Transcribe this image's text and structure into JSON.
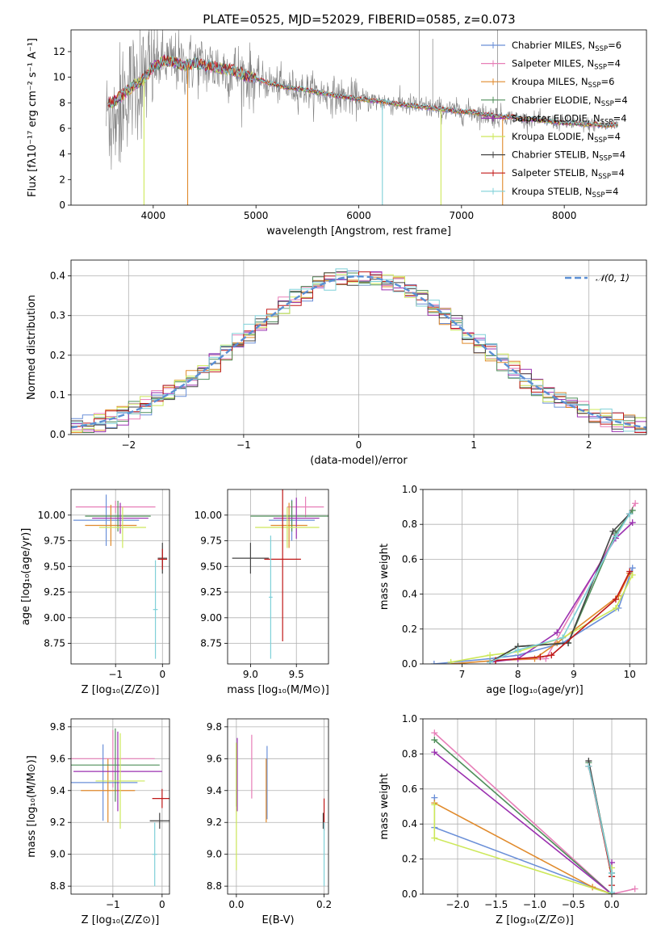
{
  "colors": {
    "Chabrier MILES": "#6a8fd8",
    "Salpeter MILES": "#e77fb8",
    "Kroupa MILES": "#e08a2b",
    "Chabrier ELODIE": "#4f8f5a",
    "Salpeter ELODIE": "#9b30b0",
    "Kroupa ELODIE": "#cde85a",
    "Chabrier STELIB": "#444444",
    "Salpeter STELIB": "#c01818",
    "Kroupa STELIB": "#7fd0d8",
    "gaussian": "#5b8fd4",
    "spectrum": "#808080"
  },
  "chart_data": [
    {
      "id": "spectrum",
      "type": "line",
      "title": "PLATE=0525, MJD=52029, FIBERID=0585, z=0.073",
      "xlabel": "wavelength [Angstrom, rest frame]",
      "ylabel": "Flux [fλ10⁻¹⁷ erg cm⁻² s⁻¹ A⁻¹]",
      "xlim": [
        3200,
        8800
      ],
      "ylim": [
        0,
        13.7
      ],
      "xticks": [
        4000,
        5000,
        6000,
        7000,
        8000
      ],
      "yticks": [
        0,
        2,
        4,
        6,
        8,
        10,
        12
      ],
      "grid": false,
      "legend_position": "top-right",
      "legend": [
        {
          "model": "Chabrier MILES",
          "label": "Chabrier MILES, N",
          "sub": "SSP",
          "n": "=6"
        },
        {
          "model": "Salpeter MILES",
          "label": "Salpeter MILES, N",
          "sub": "SSP",
          "n": "=4"
        },
        {
          "model": "Kroupa MILES",
          "label": "Kroupa MILES, N",
          "sub": "SSP",
          "n": "=6"
        },
        {
          "model": "Chabrier ELODIE",
          "label": "Chabrier ELODIE, N",
          "sub": "SSP",
          "n": "=4"
        },
        {
          "model": "Salpeter ELODIE",
          "label": "Salpeter ELODIE, N",
          "sub": "SSP",
          "n": "=4"
        },
        {
          "model": "Kroupa ELODIE",
          "label": "Kroupa ELODIE, N",
          "sub": "SSP",
          "n": "=4"
        },
        {
          "model": "Chabrier STELIB",
          "label": "Chabrier STELIB, N",
          "sub": "SSP",
          "n": "=4"
        },
        {
          "model": "Salpeter STELIB",
          "label": "Salpeter STELIB, N",
          "sub": "SSP",
          "n": "=4"
        },
        {
          "model": "Kroupa STELIB",
          "label": "Kroupa STELIB, N",
          "sub": "SSP",
          "n": "=4"
        }
      ],
      "model_continuum": [
        [
          3500,
          8.2
        ],
        [
          3600,
          8.0
        ],
        [
          3700,
          8.6
        ],
        [
          3800,
          9.3
        ],
        [
          3900,
          9.8
        ],
        [
          4000,
          10.8
        ],
        [
          4100,
          11.3
        ],
        [
          4200,
          11.2
        ],
        [
          4300,
          10.9
        ],
        [
          4400,
          11.1
        ],
        [
          4500,
          10.9
        ],
        [
          4600,
          10.8
        ],
        [
          4700,
          10.6
        ],
        [
          4800,
          10.5
        ],
        [
          4900,
          10.1
        ],
        [
          5000,
          9.9
        ],
        [
          5100,
          9.6
        ],
        [
          5200,
          9.4
        ],
        [
          5300,
          9.2
        ],
        [
          5400,
          9.1
        ],
        [
          5500,
          9.0
        ],
        [
          5600,
          8.8
        ],
        [
          5700,
          8.7
        ],
        [
          5800,
          8.5
        ],
        [
          5900,
          8.4
        ],
        [
          6000,
          8.3
        ],
        [
          6100,
          8.2
        ],
        [
          6200,
          8.1
        ],
        [
          6300,
          8.0
        ],
        [
          6400,
          7.9
        ],
        [
          6500,
          7.8
        ],
        [
          6600,
          7.7
        ],
        [
          6700,
          7.6
        ],
        [
          6800,
          7.5
        ],
        [
          6900,
          7.4
        ],
        [
          7000,
          7.3
        ],
        [
          7100,
          7.3
        ],
        [
          7200,
          7.1
        ],
        [
          7300,
          7.0
        ],
        [
          7400,
          6.9
        ],
        [
          7500,
          6.9
        ],
        [
          7600,
          6.7
        ],
        [
          7700,
          6.7
        ],
        [
          7800,
          6.6
        ],
        [
          7900,
          6.5
        ],
        [
          8000,
          6.4
        ],
        [
          8100,
          6.4
        ],
        [
          8200,
          6.3
        ],
        [
          8300,
          6.3
        ],
        [
          8400,
          6.2
        ],
        [
          8500,
          6.3
        ]
      ],
      "model_dips": [
        {
          "model": "Kroupa ELODIE",
          "x": 3910,
          "y": 0
        },
        {
          "model": "Kroupa MILES",
          "x": 4335,
          "y": 0
        },
        {
          "model": "Kroupa STELIB",
          "x": 6230,
          "y": 0
        },
        {
          "model": "Kroupa ELODIE",
          "x": 6800,
          "y": 0
        },
        {
          "model": "Kroupa MILES",
          "x": 7400,
          "y": 0
        }
      ]
    },
    {
      "id": "residuals",
      "type": "step",
      "xlabel": "(data-model)/error",
      "ylabel": "Normed distribution",
      "xlim": [
        -2.5,
        2.5
      ],
      "ylim": [
        0,
        0.44
      ],
      "xticks": [
        -2,
        -1,
        0,
        1,
        2
      ],
      "yticks": [
        0.0,
        0.1,
        0.2,
        0.3,
        0.4
      ],
      "grid": true,
      "legend_position": "top-right",
      "legend": [
        {
          "label": "𝒩(0, 1)",
          "style": "dashed"
        }
      ],
      "bin_width": 0.1
    },
    {
      "id": "age_vs_Z",
      "type": "errorbar",
      "xlabel": "Z [log₁₀(Z/Z⊙)]",
      "ylabel": "age  [log₁₀(age/yr)]",
      "xlim": [
        -1.95,
        0.15
      ],
      "ylim": [
        8.55,
        10.25
      ],
      "xticks": [
        -1,
        0
      ],
      "yticks": [
        8.75,
        9.0,
        9.25,
        9.5,
        9.75,
        10.0
      ],
      "grid": true,
      "points": [
        {
          "model": "Salpeter MILES",
          "x": -1.0,
          "xerr": 0.85,
          "y": 10.08,
          "yerr": 0.06
        },
        {
          "model": "Chabrier MILES",
          "x": -1.2,
          "xerr": 0.7,
          "y": 9.95,
          "yerr": 0.25
        },
        {
          "model": "Kroupa MILES",
          "x": -1.1,
          "xerr": 0.55,
          "y": 9.9,
          "yerr": 0.2
        },
        {
          "model": "Chabrier ELODIE",
          "x": -0.95,
          "xerr": 0.7,
          "y": 9.99,
          "yerr": 0.15
        },
        {
          "model": "Salpeter ELODIE",
          "x": -0.9,
          "xerr": 0.6,
          "y": 9.97,
          "yerr": 0.15
        },
        {
          "model": "Kroupa ELODIE",
          "x": -0.85,
          "xerr": 0.5,
          "y": 9.88,
          "yerr": 0.2
        },
        {
          "model": "Chabrier STELIB",
          "x": 0.0,
          "xerr": 0.1,
          "y": 9.58,
          "yerr": 0.15
        },
        {
          "model": "Salpeter STELIB",
          "x": 0.0,
          "xerr": 0.1,
          "y": 9.57,
          "yerr": 0.1
        },
        {
          "model": "Kroupa STELIB",
          "x": -0.15,
          "xerr": 0.05,
          "y": 9.08,
          "yerr": 0.48
        }
      ]
    },
    {
      "id": "age_vs_mass",
      "type": "errorbar",
      "xlabel": "mass [log₁₀(M/M⊙)]",
      "ylabel": "",
      "xlim": [
        8.75,
        9.85
      ],
      "ylim": [
        8.55,
        10.25
      ],
      "xticks": [
        9.0,
        9.5
      ],
      "yticks": [
        8.75,
        9.0,
        9.25,
        9.5,
        9.75,
        10.0
      ],
      "grid": true,
      "points": [
        {
          "model": "Salpeter MILES",
          "x": 9.6,
          "xerr": 0.2,
          "y": 10.08,
          "yerr": 0.1
        },
        {
          "model": "Chabrier MILES",
          "x": 9.45,
          "xerr": 0.25,
          "y": 9.95,
          "yerr": 0.2
        },
        {
          "model": "Kroupa MILES",
          "x": 9.42,
          "xerr": 0.2,
          "y": 9.9,
          "yerr": 0.22
        },
        {
          "model": "Chabrier ELODIE",
          "x": 9.45,
          "xerr": 0.45,
          "y": 9.99,
          "yerr": 0.15
        },
        {
          "model": "Salpeter ELODIE",
          "x": 9.5,
          "xerr": 0.25,
          "y": 9.97,
          "yerr": 0.2
        },
        {
          "model": "Kroupa ELODIE",
          "x": 9.4,
          "xerr": 0.35,
          "y": 9.88,
          "yerr": 0.2
        },
        {
          "model": "Chabrier STELIB",
          "x": 9.0,
          "xerr": 0.2,
          "y": 9.58,
          "yerr": 0.15
        },
        {
          "model": "Salpeter STELIB",
          "x": 9.35,
          "xerr": 0.2,
          "y": 9.57,
          "yerr": 0.8
        },
        {
          "model": "Kroupa STELIB",
          "x": 9.22,
          "xerr": 0.02,
          "y": 9.2,
          "yerr": 0.6
        }
      ]
    },
    {
      "id": "weight_vs_age",
      "type": "line",
      "xlabel": "age  [log₁₀(age/yr)]",
      "ylabel": "mass weight",
      "xlim": [
        6.3,
        10.3
      ],
      "ylim": [
        0.0,
        1.0
      ],
      "xticks": [
        7,
        8,
        9,
        10
      ],
      "yticks": [
        0.0,
        0.2,
        0.4,
        0.6,
        0.8,
        1.0
      ],
      "grid": true,
      "series": [
        {
          "name": "Chabrier MILES",
          "x": [
            6.5,
            7.5,
            8.0,
            8.8,
            9.8,
            10.05
          ],
          "y": [
            0.0,
            0.03,
            0.05,
            0.12,
            0.32,
            0.55
          ]
        },
        {
          "name": "Salpeter MILES",
          "x": [
            7.6,
            8.5,
            9.75,
            10.1
          ],
          "y": [
            0.02,
            0.03,
            0.74,
            0.92
          ]
        },
        {
          "name": "Kroupa MILES",
          "x": [
            6.8,
            7.6,
            8.3,
            8.7,
            9.8,
            10.0
          ],
          "y": [
            0.0,
            0.02,
            0.03,
            0.12,
            0.39,
            0.52
          ]
        },
        {
          "name": "Chabrier ELODIE",
          "x": [
            7.5,
            8.0,
            8.9,
            9.75,
            10.05
          ],
          "y": [
            0.01,
            0.1,
            0.12,
            0.75,
            0.88
          ]
        },
        {
          "name": "Salpeter ELODIE",
          "x": [
            7.5,
            8.0,
            8.7,
            9.75,
            10.05
          ],
          "y": [
            0.01,
            0.03,
            0.18,
            0.72,
            0.81
          ]
        },
        {
          "name": "Kroupa ELODIE",
          "x": [
            6.8,
            7.5,
            8.0,
            8.8,
            9.75,
            10.05
          ],
          "y": [
            0.01,
            0.05,
            0.07,
            0.15,
            0.32,
            0.51
          ]
        },
        {
          "name": "Chabrier STELIB",
          "x": [
            7.5,
            8.0,
            8.9,
            9.7,
            10.0
          ],
          "y": [
            0.01,
            0.1,
            0.12,
            0.76,
            0.86
          ]
        },
        {
          "name": "Salpeter STELIB",
          "x": [
            7.6,
            8.4,
            8.6,
            9.75,
            10.0
          ],
          "y": [
            0.02,
            0.04,
            0.05,
            0.37,
            0.53
          ]
        },
        {
          "name": "Kroupa STELIB",
          "x": [
            7.5,
            8.0,
            8.8,
            9.75,
            10.0
          ],
          "y": [
            0.01,
            0.08,
            0.15,
            0.73,
            0.86
          ]
        }
      ]
    },
    {
      "id": "mass_vs_Z",
      "type": "errorbar",
      "xlabel": "Z [log₁₀(Z/Z⊙)]",
      "ylabel": "mass [log₁₀(M/M⊙)]",
      "xlim": [
        -1.85,
        0.15
      ],
      "ylim": [
        8.75,
        9.85
      ],
      "xticks": [
        -1,
        0
      ],
      "yticks": [
        8.8,
        9.0,
        9.2,
        9.4,
        9.6,
        9.8
      ],
      "grid": true,
      "points": [
        {
          "model": "Salpeter MILES",
          "x": -1.0,
          "xerr": 0.85,
          "y": 9.6,
          "yerr": 0.18
        },
        {
          "model": "Chabrier MILES",
          "x": -1.2,
          "xerr": 0.7,
          "y": 9.45,
          "yerr": 0.24
        },
        {
          "model": "Kroupa MILES",
          "x": -1.1,
          "xerr": 0.55,
          "y": 9.4,
          "yerr": 0.2
        },
        {
          "model": "Chabrier ELODIE",
          "x": -0.95,
          "xerr": 0.9,
          "y": 9.56,
          "yerr": 0.23
        },
        {
          "model": "Salpeter ELODIE",
          "x": -0.9,
          "xerr": 0.9,
          "y": 9.52,
          "yerr": 0.25
        },
        {
          "model": "Kroupa ELODIE",
          "x": -0.85,
          "xerr": 0.5,
          "y": 9.46,
          "yerr": 0.3
        },
        {
          "model": "Chabrier STELIB",
          "x": -0.05,
          "xerr": 0.2,
          "y": 9.21,
          "yerr": 0.05
        },
        {
          "model": "Salpeter STELIB",
          "x": 0.0,
          "xerr": 0.2,
          "y": 9.35,
          "yerr": 0.06
        },
        {
          "model": "Kroupa STELIB",
          "x": -0.15,
          "xerr": 0.05,
          "y": 9.0,
          "yerr": 0.2
        }
      ]
    },
    {
      "id": "mass_vs_ebv",
      "type": "errorbar",
      "xlabel": "E(B-V)",
      "ylabel": "",
      "xlim": [
        -0.02,
        0.21
      ],
      "ylim": [
        8.75,
        9.85
      ],
      "xticks": [
        0.0,
        0.2
      ],
      "yticks": [
        8.8,
        9.0,
        9.2,
        9.4,
        9.6,
        9.8
      ],
      "grid": true,
      "points": [
        {
          "model": "Salpeter MILES",
          "x": 0.035,
          "xerr": 0.0,
          "y": 9.55,
          "yerr": 0.2
        },
        {
          "model": "Chabrier MILES",
          "x": 0.07,
          "xerr": 0.0,
          "y": 9.45,
          "yerr": 0.23
        },
        {
          "model": "Kroupa MILES",
          "x": 0.068,
          "xerr": 0.0,
          "y": 9.4,
          "yerr": 0.2
        },
        {
          "model": "Chabrier ELODIE",
          "x": 0.0,
          "xerr": 0.0,
          "y": 9.5,
          "yerr": 0.2
        },
        {
          "model": "Salpeter ELODIE",
          "x": 0.002,
          "xerr": 0.0,
          "y": 9.5,
          "yerr": 0.23
        },
        {
          "model": "Kroupa ELODIE",
          "x": 0.0,
          "xerr": 0.0,
          "y": 9.3,
          "yerr": 0.4
        },
        {
          "model": "Chabrier STELIB",
          "x": 0.198,
          "xerr": 0.0,
          "y": 9.21,
          "yerr": 0.05
        },
        {
          "model": "Salpeter STELIB",
          "x": 0.2,
          "xerr": 0.0,
          "y": 9.25,
          "yerr": 0.1
        },
        {
          "model": "Kroupa STELIB",
          "x": 0.2,
          "xerr": 0.0,
          "y": 9.0,
          "yerr": 0.2
        }
      ]
    },
    {
      "id": "weight_vs_Z",
      "type": "line",
      "xlabel": "Z [log₁₀(Z/Z⊙)]",
      "ylabel": "mass weight",
      "xlim": [
        -2.45,
        0.45
      ],
      "ylim": [
        0.0,
        1.0
      ],
      "xticks": [
        -2.0,
        -1.5,
        -1.0,
        -0.5,
        0.0
      ],
      "yticks": [
        0.0,
        0.2,
        0.4,
        0.6,
        0.8,
        1.0
      ],
      "grid": true,
      "series": [
        {
          "name": "Chabrier MILES",
          "x": [
            -2.3,
            -2.3,
            0.0,
            0.0
          ],
          "y": [
            0.55,
            0.38,
            0.0,
            0.12
          ]
        },
        {
          "name": "Salpeter MILES",
          "x": [
            -2.3,
            0.0,
            0.3
          ],
          "y": [
            0.92,
            0.0,
            0.03
          ]
        },
        {
          "name": "Kroupa MILES",
          "x": [
            -2.3,
            -0.25,
            0.0,
            0.0
          ],
          "y": [
            0.52,
            0.04,
            0.0,
            0.1
          ]
        },
        {
          "name": "Chabrier ELODIE",
          "x": [
            -2.3,
            0.0,
            0.0,
            -0.3
          ],
          "y": [
            0.88,
            0.0,
            0.12,
            0.75
          ]
        },
        {
          "name": "Salpeter ELODIE",
          "x": [
            -2.3,
            0.0,
            0.0
          ],
          "y": [
            0.81,
            0.0,
            0.18
          ]
        },
        {
          "name": "Kroupa ELODIE",
          "x": [
            -2.3,
            -2.3,
            0.0,
            0.0
          ],
          "y": [
            0.51,
            0.32,
            0.0,
            0.15
          ]
        },
        {
          "name": "Chabrier STELIB",
          "x": [
            -0.3,
            0.0,
            0.0
          ],
          "y": [
            0.76,
            0.1,
            0.0
          ]
        },
        {
          "name": "Salpeter STELIB",
          "x": [
            -0.3,
            0.0,
            0.0
          ],
          "y": [
            0.73,
            0.1,
            0.05
          ]
        },
        {
          "name": "Kroupa STELIB",
          "x": [
            -0.3,
            0.0,
            0.0
          ],
          "y": [
            0.73,
            0.12,
            0.01
          ]
        }
      ]
    }
  ]
}
